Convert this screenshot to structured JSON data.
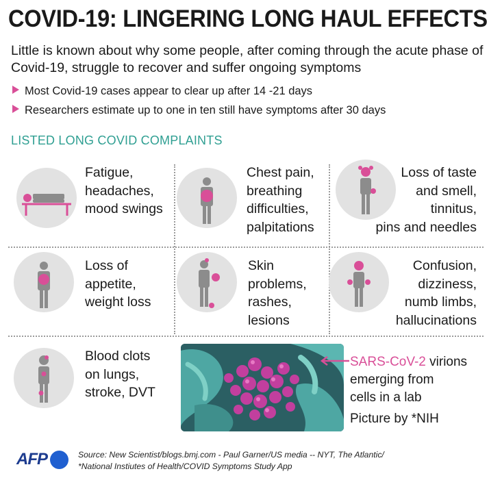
{
  "title": "COVID-19: LINGERING LONG HAUL EFFECTS",
  "intro": "Little is known about why some people, after coming through the acute phase of Covid-19, struggle to recover and suffer ongoing symptoms",
  "bullets": [
    "Most Covid-19 cases appear to clear up after 14 -21 days",
    "Researchers estimate up to one in ten still have symptoms after 30 days"
  ],
  "section_title": "LISTED LONG COVID COMPLAINTS",
  "complaints": [
    {
      "lines": [
        "Fatigue,",
        "headaches,",
        "mood swings"
      ],
      "icon": "lying-person-icon"
    },
    {
      "lines": [
        "Chest pain,",
        "breathing",
        "difficulties,",
        "palpitations"
      ],
      "icon": "chest-person-icon"
    },
    {
      "lines": [
        "Loss of taste",
        "and smell,",
        "tinnitus,",
        "pins and needles"
      ],
      "icon": "head-hand-person-icon"
    },
    {
      "lines": [
        "Loss of",
        "appetite,",
        "weight loss"
      ],
      "icon": "stomach-person-icon"
    },
    {
      "lines": [
        "Skin",
        "problems,",
        "rashes,",
        "lesions"
      ],
      "icon": "skin-person-icon"
    },
    {
      "lines": [
        "Confusion,",
        "dizziness,",
        "numb limbs,",
        "hallucinations"
      ],
      "icon": "head-limbs-person-icon"
    },
    {
      "lines": [
        "Blood clots",
        "on lungs,",
        "stroke, DVT"
      ],
      "icon": "clots-person-icon"
    }
  ],
  "photo": {
    "icon": "virions-microscope-image",
    "caption_highlight": "SARS-CoV-2",
    "caption_rest_line1": " virions",
    "caption_line2": "emerging from",
    "caption_line3": "cells in a lab",
    "credit": "Picture by *NIH"
  },
  "footer": {
    "logo": "AFP",
    "source_line1": "Source: New Scientist/blogs.bmj.com - Paul Garner/US media -- NYT, The Atlantic/",
    "source_line2": "*National Instiutes of Health/COVID Symptoms Study App"
  },
  "colors": {
    "accent_pink": "#d94f98",
    "teal": "#2f9f92",
    "figure_gray": "#8c8c8c",
    "circle_gray": "#e2e2e2",
    "afp_blue": "#1f5fd0"
  }
}
